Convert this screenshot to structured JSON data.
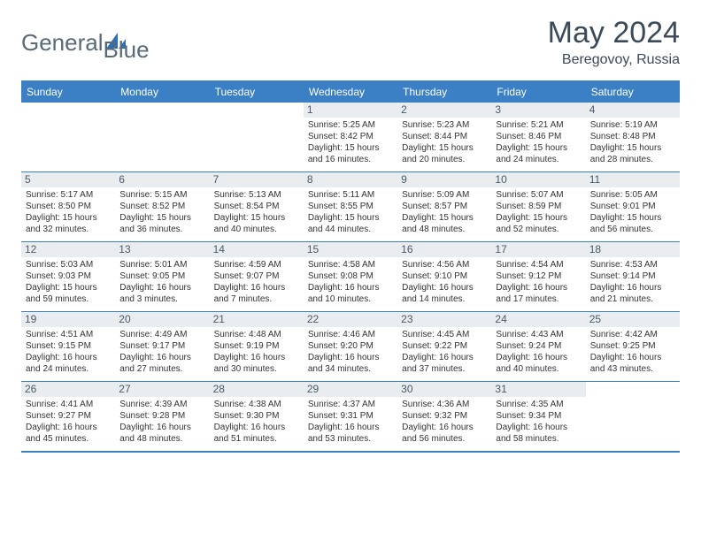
{
  "brand": {
    "name1": "General",
    "name2": "Blue",
    "icon_color": "#2e6fb5"
  },
  "title": "May 2024",
  "location": "Beregovoy, Russia",
  "colors": {
    "header_bg": "#3b7fc4",
    "border": "#3b7fc4",
    "daynum_bg": "#e9edf0",
    "text": "#333333",
    "title": "#3a4a58"
  },
  "typography": {
    "title_fontsize": 34,
    "subtitle_fontsize": 16,
    "dayhead_fontsize": 12,
    "cell_fontsize": 10,
    "daynum_fontsize": 12
  },
  "day_names": [
    "Sunday",
    "Monday",
    "Tuesday",
    "Wednesday",
    "Thursday",
    "Friday",
    "Saturday"
  ],
  "weeks": [
    [
      {
        "n": "",
        "lines": [
          "",
          "",
          "",
          ""
        ]
      },
      {
        "n": "",
        "lines": [
          "",
          "",
          "",
          ""
        ]
      },
      {
        "n": "",
        "lines": [
          "",
          "",
          "",
          ""
        ]
      },
      {
        "n": "1",
        "lines": [
          "Sunrise: 5:25 AM",
          "Sunset: 8:42 PM",
          "Daylight: 15 hours",
          "and 16 minutes."
        ]
      },
      {
        "n": "2",
        "lines": [
          "Sunrise: 5:23 AM",
          "Sunset: 8:44 PM",
          "Daylight: 15 hours",
          "and 20 minutes."
        ]
      },
      {
        "n": "3",
        "lines": [
          "Sunrise: 5:21 AM",
          "Sunset: 8:46 PM",
          "Daylight: 15 hours",
          "and 24 minutes."
        ]
      },
      {
        "n": "4",
        "lines": [
          "Sunrise: 5:19 AM",
          "Sunset: 8:48 PM",
          "Daylight: 15 hours",
          "and 28 minutes."
        ]
      }
    ],
    [
      {
        "n": "5",
        "lines": [
          "Sunrise: 5:17 AM",
          "Sunset: 8:50 PM",
          "Daylight: 15 hours",
          "and 32 minutes."
        ]
      },
      {
        "n": "6",
        "lines": [
          "Sunrise: 5:15 AM",
          "Sunset: 8:52 PM",
          "Daylight: 15 hours",
          "and 36 minutes."
        ]
      },
      {
        "n": "7",
        "lines": [
          "Sunrise: 5:13 AM",
          "Sunset: 8:54 PM",
          "Daylight: 15 hours",
          "and 40 minutes."
        ]
      },
      {
        "n": "8",
        "lines": [
          "Sunrise: 5:11 AM",
          "Sunset: 8:55 PM",
          "Daylight: 15 hours",
          "and 44 minutes."
        ]
      },
      {
        "n": "9",
        "lines": [
          "Sunrise: 5:09 AM",
          "Sunset: 8:57 PM",
          "Daylight: 15 hours",
          "and 48 minutes."
        ]
      },
      {
        "n": "10",
        "lines": [
          "Sunrise: 5:07 AM",
          "Sunset: 8:59 PM",
          "Daylight: 15 hours",
          "and 52 minutes."
        ]
      },
      {
        "n": "11",
        "lines": [
          "Sunrise: 5:05 AM",
          "Sunset: 9:01 PM",
          "Daylight: 15 hours",
          "and 56 minutes."
        ]
      }
    ],
    [
      {
        "n": "12",
        "lines": [
          "Sunrise: 5:03 AM",
          "Sunset: 9:03 PM",
          "Daylight: 15 hours",
          "and 59 minutes."
        ]
      },
      {
        "n": "13",
        "lines": [
          "Sunrise: 5:01 AM",
          "Sunset: 9:05 PM",
          "Daylight: 16 hours",
          "and 3 minutes."
        ]
      },
      {
        "n": "14",
        "lines": [
          "Sunrise: 4:59 AM",
          "Sunset: 9:07 PM",
          "Daylight: 16 hours",
          "and 7 minutes."
        ]
      },
      {
        "n": "15",
        "lines": [
          "Sunrise: 4:58 AM",
          "Sunset: 9:08 PM",
          "Daylight: 16 hours",
          "and 10 minutes."
        ]
      },
      {
        "n": "16",
        "lines": [
          "Sunrise: 4:56 AM",
          "Sunset: 9:10 PM",
          "Daylight: 16 hours",
          "and 14 minutes."
        ]
      },
      {
        "n": "17",
        "lines": [
          "Sunrise: 4:54 AM",
          "Sunset: 9:12 PM",
          "Daylight: 16 hours",
          "and 17 minutes."
        ]
      },
      {
        "n": "18",
        "lines": [
          "Sunrise: 4:53 AM",
          "Sunset: 9:14 PM",
          "Daylight: 16 hours",
          "and 21 minutes."
        ]
      }
    ],
    [
      {
        "n": "19",
        "lines": [
          "Sunrise: 4:51 AM",
          "Sunset: 9:15 PM",
          "Daylight: 16 hours",
          "and 24 minutes."
        ]
      },
      {
        "n": "20",
        "lines": [
          "Sunrise: 4:49 AM",
          "Sunset: 9:17 PM",
          "Daylight: 16 hours",
          "and 27 minutes."
        ]
      },
      {
        "n": "21",
        "lines": [
          "Sunrise: 4:48 AM",
          "Sunset: 9:19 PM",
          "Daylight: 16 hours",
          "and 30 minutes."
        ]
      },
      {
        "n": "22",
        "lines": [
          "Sunrise: 4:46 AM",
          "Sunset: 9:20 PM",
          "Daylight: 16 hours",
          "and 34 minutes."
        ]
      },
      {
        "n": "23",
        "lines": [
          "Sunrise: 4:45 AM",
          "Sunset: 9:22 PM",
          "Daylight: 16 hours",
          "and 37 minutes."
        ]
      },
      {
        "n": "24",
        "lines": [
          "Sunrise: 4:43 AM",
          "Sunset: 9:24 PM",
          "Daylight: 16 hours",
          "and 40 minutes."
        ]
      },
      {
        "n": "25",
        "lines": [
          "Sunrise: 4:42 AM",
          "Sunset: 9:25 PM",
          "Daylight: 16 hours",
          "and 43 minutes."
        ]
      }
    ],
    [
      {
        "n": "26",
        "lines": [
          "Sunrise: 4:41 AM",
          "Sunset: 9:27 PM",
          "Daylight: 16 hours",
          "and 45 minutes."
        ]
      },
      {
        "n": "27",
        "lines": [
          "Sunrise: 4:39 AM",
          "Sunset: 9:28 PM",
          "Daylight: 16 hours",
          "and 48 minutes."
        ]
      },
      {
        "n": "28",
        "lines": [
          "Sunrise: 4:38 AM",
          "Sunset: 9:30 PM",
          "Daylight: 16 hours",
          "and 51 minutes."
        ]
      },
      {
        "n": "29",
        "lines": [
          "Sunrise: 4:37 AM",
          "Sunset: 9:31 PM",
          "Daylight: 16 hours",
          "and 53 minutes."
        ]
      },
      {
        "n": "30",
        "lines": [
          "Sunrise: 4:36 AM",
          "Sunset: 9:32 PM",
          "Daylight: 16 hours",
          "and 56 minutes."
        ]
      },
      {
        "n": "31",
        "lines": [
          "Sunrise: 4:35 AM",
          "Sunset: 9:34 PM",
          "Daylight: 16 hours",
          "and 58 minutes."
        ]
      },
      {
        "n": "",
        "lines": [
          "",
          "",
          "",
          ""
        ]
      }
    ]
  ]
}
